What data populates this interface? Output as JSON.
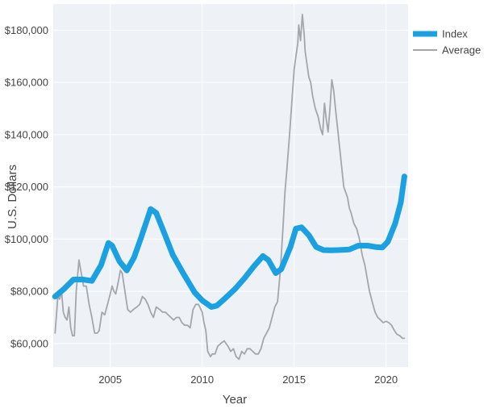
{
  "chart_data": {
    "type": "line",
    "title": "",
    "xlabel": "Year",
    "ylabel": "U.S. Dollars",
    "xlim": [
      2001.9,
      2021.2
    ],
    "ylim": [
      51000,
      190000
    ],
    "x_ticks": [
      2005,
      2010,
      2015,
      2020
    ],
    "x_tick_labels": [
      "2005",
      "2010",
      "2015",
      "2020"
    ],
    "y_ticks": [
      60000,
      80000,
      100000,
      120000,
      140000,
      160000,
      180000
    ],
    "y_tick_labels": [
      "$60,000",
      "$80,000",
      "$100,000",
      "$120,000",
      "$140,000",
      "$160,000",
      "$180,000"
    ],
    "grid": true,
    "legend_position": "top-right",
    "series": [
      {
        "name": "Index",
        "color": "#1ba1e2",
        "x": [
          2002.0,
          2002.5,
          2003.0,
          2003.5,
          2004.0,
          2004.5,
          2004.9,
          2005.1,
          2005.5,
          2005.9,
          2006.3,
          2006.7,
          2007.2,
          2007.5,
          2007.9,
          2008.4,
          2009.0,
          2009.6,
          2010.0,
          2010.5,
          2010.8,
          2011.2,
          2011.8,
          2012.3,
          2012.8,
          2013.3,
          2013.6,
          2014.0,
          2014.3,
          2014.8,
          2015.1,
          2015.4,
          2015.8,
          2016.2,
          2016.6,
          2017.0,
          2017.4,
          2018.0,
          2018.5,
          2019.0,
          2019.5,
          2019.8,
          2020.1,
          2020.5,
          2020.8,
          2021.0
        ],
        "values": [
          78000,
          81000,
          84500,
          84500,
          84000,
          90000,
          98500,
          97500,
          91500,
          88000,
          93000,
          101000,
          111500,
          110000,
          103000,
          94000,
          86500,
          79500,
          76500,
          74000,
          74500,
          77000,
          81000,
          85000,
          89500,
          93500,
          92000,
          87000,
          88500,
          97000,
          104000,
          104500,
          101500,
          97000,
          95800,
          95700,
          95800,
          96000,
          97500,
          97500,
          96900,
          96800,
          99000,
          106000,
          114000,
          124000
        ]
      },
      {
        "name": "Average",
        "color": "#a3a7ad",
        "x": [
          2002.0,
          2002.15,
          2002.25,
          2002.35,
          2002.45,
          2002.55,
          2002.65,
          2002.75,
          2002.85,
          2002.95,
          2003.05,
          2003.15,
          2003.3,
          2003.45,
          2003.55,
          2003.7,
          2003.85,
          2004.0,
          2004.15,
          2004.3,
          2004.4,
          2004.55,
          2004.7,
          2004.85,
          2005.0,
          2005.1,
          2005.2,
          2005.3,
          2005.45,
          2005.55,
          2005.65,
          2005.8,
          2005.95,
          2006.1,
          2006.25,
          2006.45,
          2006.6,
          2006.75,
          2006.9,
          2007.05,
          2007.2,
          2007.35,
          2007.5,
          2007.7,
          2007.85,
          2008.0,
          2008.15,
          2008.3,
          2008.45,
          2008.6,
          2008.75,
          2008.9,
          2009.05,
          2009.2,
          2009.35,
          2009.5,
          2009.65,
          2009.8,
          2010.0,
          2010.1,
          2010.2,
          2010.3,
          2010.45,
          2010.55,
          2010.7,
          2010.85,
          2011.0,
          2011.2,
          2011.4,
          2011.55,
          2011.7,
          2011.85,
          2012.0,
          2012.15,
          2012.3,
          2012.45,
          2012.6,
          2012.75,
          2012.9,
          2013.05,
          2013.2,
          2013.35,
          2013.5,
          2013.65,
          2013.8,
          2013.95,
          2014.1,
          2014.25,
          2014.4,
          2014.5,
          2014.6,
          2014.75,
          2014.9,
          2015.0,
          2015.1,
          2015.2,
          2015.25,
          2015.35,
          2015.45,
          2015.55,
          2015.6,
          2015.7,
          2015.8,
          2015.9,
          2016.0,
          2016.15,
          2016.3,
          2016.45,
          2016.55,
          2016.65,
          2016.75,
          2016.85,
          2016.95,
          2017.05,
          2017.15,
          2017.25,
          2017.4,
          2017.55,
          2017.7,
          2017.8,
          2017.9,
          2018.0,
          2018.1,
          2018.25,
          2018.4,
          2018.55,
          2018.7,
          2018.85,
          2019.0,
          2019.1,
          2019.25,
          2019.4,
          2019.55,
          2019.7,
          2019.85,
          2020.0,
          2020.15,
          2020.3,
          2020.45,
          2020.6,
          2020.75,
          2020.9,
          2021.0
        ],
        "values": [
          64000,
          78000,
          77000,
          80000,
          72000,
          70000,
          69000,
          74000,
          66000,
          63000,
          63000,
          80000,
          92000,
          86000,
          82000,
          82000,
          75000,
          70000,
          64000,
          64000,
          65000,
          72000,
          71000,
          75000,
          79000,
          82000,
          80000,
          79000,
          84000,
          88000,
          87000,
          80000,
          73000,
          72000,
          73000,
          74000,
          75000,
          78000,
          77000,
          75000,
          72000,
          70000,
          74000,
          73000,
          72000,
          72000,
          71000,
          70000,
          69000,
          70000,
          70000,
          68000,
          67000,
          67000,
          66000,
          73000,
          75000,
          75000,
          72000,
          68000,
          65000,
          57000,
          55000,
          56000,
          56000,
          59000,
          60000,
          61000,
          59000,
          57000,
          58000,
          55000,
          54000,
          57000,
          56000,
          58000,
          58000,
          57000,
          56000,
          56000,
          58000,
          62000,
          64000,
          66000,
          70000,
          74000,
          76000,
          88000,
          105000,
          118000,
          126000,
          140000,
          155000,
          165000,
          170000,
          175000,
          182000,
          176000,
          186000,
          178000,
          172000,
          167000,
          162000,
          160000,
          155000,
          150000,
          147000,
          142000,
          140000,
          152000,
          146000,
          141000,
          150000,
          161000,
          157000,
          150000,
          140000,
          130000,
          120000,
          118000,
          116000,
          112000,
          110000,
          106000,
          104000,
          100000,
          94000,
          90000,
          84000,
          80000,
          76000,
          72000,
          70000,
          69000,
          68000,
          68500,
          68000,
          67000,
          65000,
          63500,
          63000,
          62000,
          62000
        ]
      }
    ]
  },
  "legend": {
    "items": [
      {
        "label": "Index",
        "color": "#1ba1e2"
      },
      {
        "label": "Average",
        "color": "#a3a7ad"
      }
    ]
  },
  "colors": {
    "plot_background": "#eef2f7",
    "paper_background": "#ffffff",
    "grid": "#ffffff",
    "text": "#444444"
  }
}
